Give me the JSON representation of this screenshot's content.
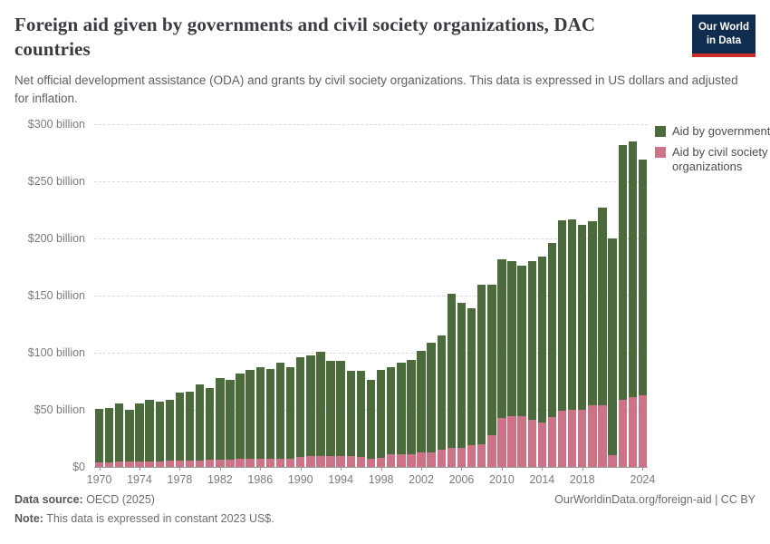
{
  "header": {
    "title": "Foreign aid given by governments and civil society organizations, DAC countries",
    "subtitle": "Net official development assistance (ODA) and grants by civil society organizations. This data is expressed in US dollars and adjusted for inflation.",
    "logo": {
      "line1": "Our World",
      "line2": "in Data",
      "bg_color": "#102d4f",
      "accent_color": "#cd2d26"
    }
  },
  "legend": [
    {
      "label": "Aid by governments",
      "color": "#4c6b3c"
    },
    {
      "label": "Aid by civil society organizations",
      "color": "#ce7287"
    }
  ],
  "chart_data": {
    "type": "bar",
    "stacked": true,
    "title": "Foreign aid given by governments and civil society organizations, DAC countries",
    "unit": "US$ billion (constant 2023 US$)",
    "grid": "horizontal dashed",
    "legend_position": "top-right",
    "ylim": [
      0,
      300
    ],
    "ytick_step": 50,
    "ytick_labels": [
      "$0",
      "$50 billion",
      "$100 billion",
      "$150 billion",
      "$200 billion",
      "$250 billion",
      "$300 billion"
    ],
    "xtick_years": [
      1970,
      1974,
      1978,
      1982,
      1986,
      1990,
      1994,
      1998,
      2002,
      2006,
      2010,
      2014,
      2018,
      2024
    ],
    "x": [
      1970,
      1971,
      1972,
      1973,
      1974,
      1975,
      1976,
      1977,
      1978,
      1979,
      1980,
      1981,
      1982,
      1983,
      1984,
      1985,
      1986,
      1987,
      1988,
      1989,
      1990,
      1991,
      1992,
      1993,
      1994,
      1995,
      1996,
      1997,
      1998,
      1999,
      2000,
      2001,
      2002,
      2003,
      2004,
      2005,
      2006,
      2007,
      2008,
      2009,
      2010,
      2011,
      2012,
      2013,
      2014,
      2015,
      2016,
      2017,
      2018,
      2019,
      2020,
      2021,
      2022,
      2023,
      2024
    ],
    "series": [
      {
        "name": "Aid by civil society organizations",
        "color": "#ce7287",
        "values": [
          4,
          4,
          4.5,
          5,
          5,
          5,
          5,
          5.5,
          5.5,
          6,
          6,
          6.5,
          6.5,
          6.5,
          7,
          7,
          7,
          7,
          7.5,
          7.5,
          9,
          9.5,
          10,
          10,
          10,
          10,
          9,
          7,
          8,
          11,
          11.5,
          11.5,
          12.5,
          13,
          15,
          16.5,
          16.5,
          19,
          20,
          28,
          43,
          44.5,
          44.5,
          41,
          39,
          44,
          49,
          50,
          50,
          54,
          54,
          10,
          59,
          61,
          63
        ]
      },
      {
        "name": "Aid by governments",
        "color": "#4c6b3c",
        "values": [
          47,
          48,
          51.5,
          45,
          51,
          54,
          52,
          53.5,
          59.5,
          60,
          66,
          62.5,
          71.5,
          69.5,
          75,
          78,
          80,
          79,
          83.5,
          79.5,
          87,
          88.5,
          91,
          83,
          83,
          74,
          75,
          69,
          77,
          76.5,
          79.5,
          82.5,
          89.5,
          96,
          100,
          135.5,
          127.5,
          120,
          140,
          132,
          139,
          135.5,
          131.5,
          139,
          145,
          152,
          167,
          167,
          162,
          161,
          173,
          190,
          223,
          224,
          206
        ]
      }
    ]
  },
  "footer": {
    "source_label": "Data source:",
    "source_value": " OECD (2025)",
    "note_label": "Note:",
    "note_value": " This data is expressed in constant 2023 US$.",
    "link": "OurWorldinData.org/foreign-aid | CC BY"
  }
}
